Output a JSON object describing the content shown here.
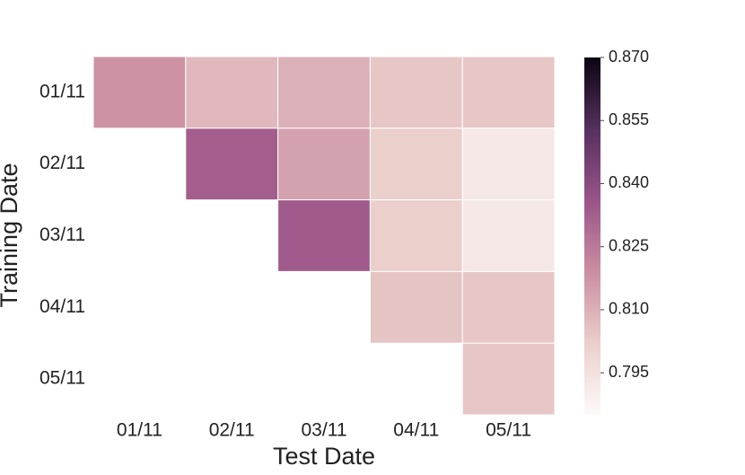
{
  "chart_data": {
    "type": "heatmap",
    "x_label": "Test Date",
    "y_label": "Training Date",
    "x_categories": [
      "01/11",
      "02/11",
      "03/11",
      "04/11",
      "05/11"
    ],
    "y_categories": [
      "01/11",
      "02/11",
      "03/11",
      "04/11",
      "05/11"
    ],
    "values": [
      [
        0.818,
        0.808,
        0.81,
        0.804,
        0.804
      ],
      [
        null,
        0.833,
        0.814,
        0.802,
        0.792
      ],
      [
        null,
        null,
        0.834,
        0.802,
        0.792
      ],
      [
        null,
        null,
        null,
        0.805,
        0.804
      ],
      [
        null,
        null,
        null,
        null,
        0.804
      ]
    ],
    "colormap": [
      "#fdfafa",
      "#ebcfcb",
      "#cb8ea2",
      "#9a5489",
      "#55305f",
      "#0b0511"
    ],
    "clim": [
      0.785,
      0.87
    ],
    "cticks": [
      0.795,
      {
        "value": 0.81,
        "label": "0.810"
      },
      0.825,
      {
        "value": 0.84,
        "label": "0.840"
      },
      0.855,
      {
        "value": 0.87,
        "label": "0.870"
      }
    ]
  }
}
